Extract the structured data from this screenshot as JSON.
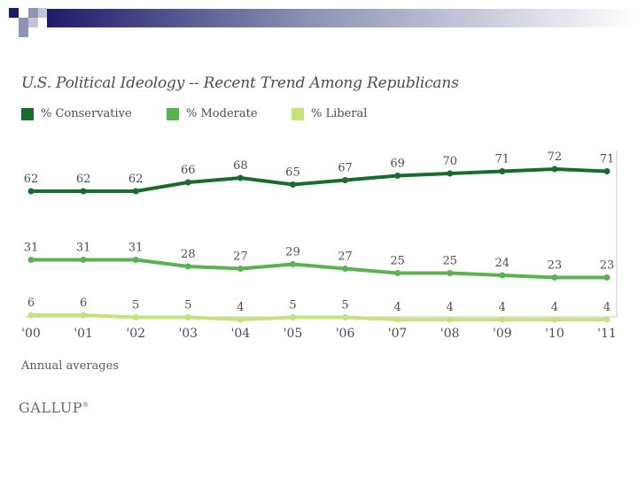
{
  "colors": {
    "conservative": "#186d2e",
    "moderate": "#59b34f",
    "liberal": "#c6e27a",
    "text": "#4d4d4d",
    "axis": "#c8c8c8",
    "slide_square": "#1c1c6b"
  },
  "chart_data": {
    "type": "line",
    "title": "U.S. Political Ideology -- Recent Trend Among Republicans",
    "categories": [
      "'00",
      "'01",
      "'02",
      "'03",
      "'04",
      "'05",
      "'06",
      "'07",
      "'08",
      "'09",
      "'10",
      "'11"
    ],
    "series": [
      {
        "name": "% Conservative",
        "color": "#186d2e",
        "values": [
          62,
          62,
          62,
          66,
          68,
          65,
          67,
          69,
          70,
          71,
          72,
          71
        ]
      },
      {
        "name": "% Moderate",
        "color": "#59b34f",
        "values": [
          31,
          31,
          31,
          28,
          27,
          29,
          27,
          25,
          25,
          24,
          23,
          23
        ]
      },
      {
        "name": "% Liberal",
        "color": "#c6e27a",
        "values": [
          6,
          6,
          5,
          5,
          4,
          5,
          5,
          4,
          4,
          4,
          4,
          4
        ]
      }
    ],
    "xlabel": "",
    "ylabel": "",
    "footnote": "Annual averages",
    "source": "GALLUP"
  }
}
